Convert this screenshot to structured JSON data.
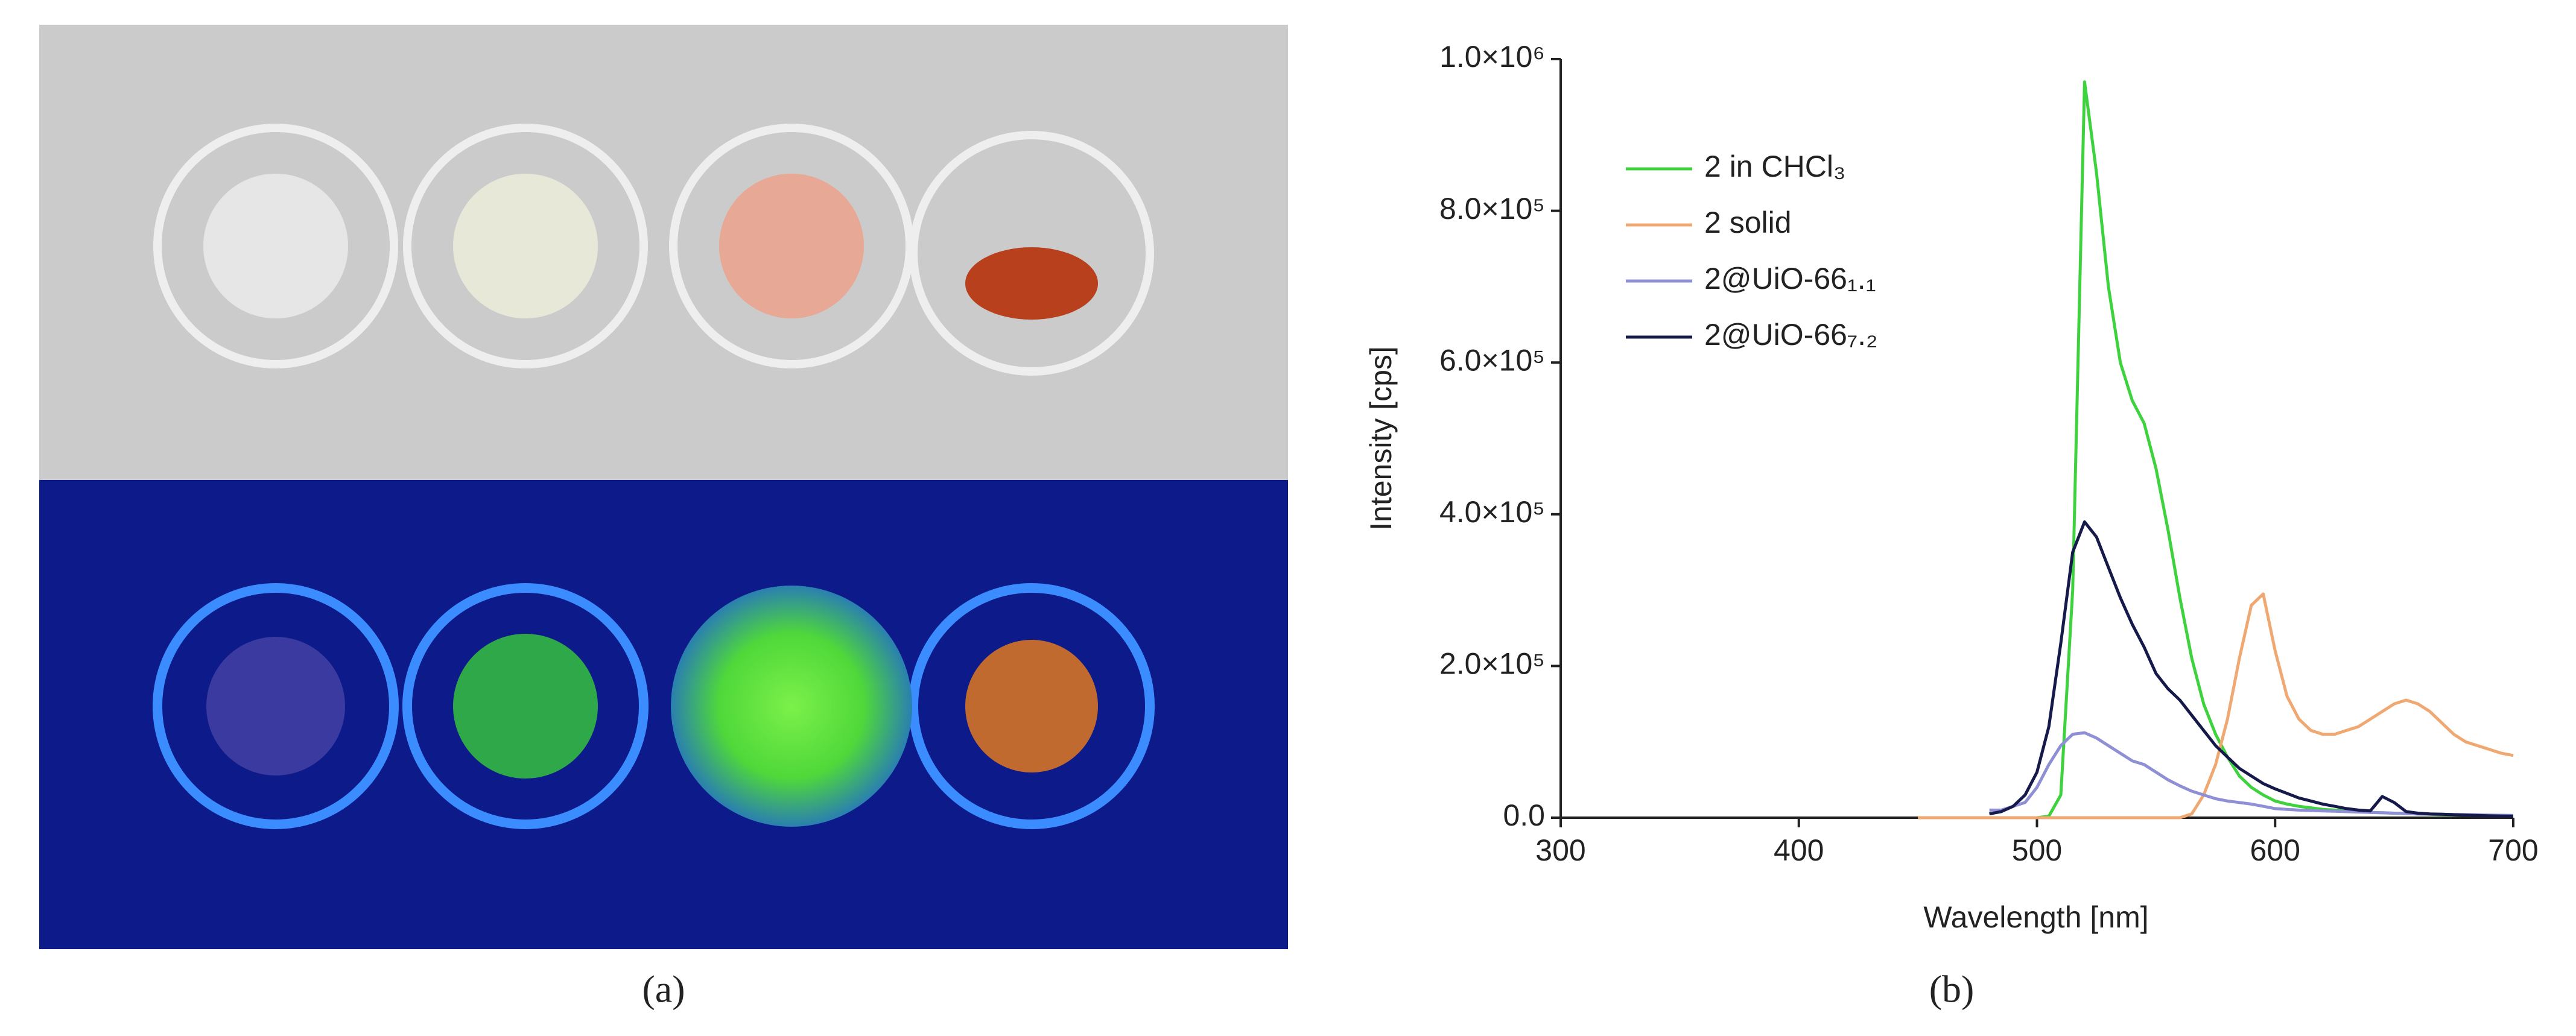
{
  "panel_labels": [
    "(a)",
    "(b)"
  ],
  "chart_data": {
    "type": "line",
    "xlabel": "Wavelength [nm]",
    "ylabel": "Intensity [cps]",
    "xlim": [
      300,
      700
    ],
    "xticks": [
      300,
      400,
      500,
      600,
      700
    ],
    "ylim": [
      0,
      1000000
    ],
    "yticks": [
      {
        "value": 0,
        "label": "0.0"
      },
      {
        "value": 200000,
        "label": "2.0×10⁵"
      },
      {
        "value": 400000,
        "label": "4.0×10⁵"
      },
      {
        "value": 600000,
        "label": "6.0×10⁵"
      },
      {
        "value": 800000,
        "label": "8.0×10⁵"
      },
      {
        "value": 1000000,
        "label": "1.0×10⁶"
      }
    ],
    "x": [
      450,
      455,
      460,
      465,
      470,
      475,
      480,
      485,
      490,
      495,
      500,
      505,
      510,
      515,
      520,
      525,
      530,
      535,
      540,
      545,
      550,
      555,
      560,
      565,
      570,
      575,
      580,
      585,
      590,
      595,
      600,
      605,
      610,
      615,
      620,
      625,
      630,
      635,
      640,
      645,
      650,
      655,
      660,
      665,
      670,
      675,
      680,
      685,
      690,
      695,
      700
    ],
    "series": [
      {
        "name": "2 in CHCl₃",
        "color": "#3ed33e",
        "values": [
          0,
          0,
          0,
          0,
          0,
          0,
          0,
          0,
          0,
          0,
          0,
          2000,
          30000,
          300000,
          970000,
          850000,
          700000,
          600000,
          550000,
          520000,
          460000,
          380000,
          290000,
          210000,
          150000,
          110000,
          80000,
          55000,
          40000,
          30000,
          22000,
          18000,
          15000,
          13000,
          11000,
          10000,
          9000,
          8000,
          7000,
          6500,
          6000,
          5500,
          5000,
          4500,
          4000,
          3800,
          3500,
          3200,
          3000,
          2800,
          2500
        ]
      },
      {
        "name": "2 solid",
        "color": "#f0a872",
        "values": [
          0,
          0,
          0,
          0,
          0,
          0,
          0,
          0,
          0,
          0,
          0,
          0,
          0,
          0,
          0,
          0,
          0,
          0,
          0,
          0,
          0,
          0,
          0,
          5000,
          30000,
          70000,
          130000,
          210000,
          280000,
          295000,
          220000,
          160000,
          130000,
          115000,
          110000,
          110000,
          115000,
          120000,
          130000,
          140000,
          150000,
          155000,
          150000,
          140000,
          125000,
          110000,
          100000,
          95000,
          90000,
          85000,
          82000
        ]
      },
      {
        "name": "2@UiO-66₁.₁",
        "color": "#8f8fd6",
        "values": [
          null,
          null,
          null,
          null,
          null,
          null,
          10000,
          10000,
          15000,
          20000,
          40000,
          70000,
          95000,
          110000,
          112000,
          105000,
          95000,
          85000,
          75000,
          70000,
          60000,
          50000,
          42000,
          35000,
          30000,
          25000,
          22000,
          20000,
          18000,
          15000,
          12000,
          11000,
          10000,
          9500,
          9000,
          8500,
          8000,
          7500,
          7000,
          6500,
          6000,
          5500,
          5000,
          4800,
          4500,
          4200,
          4000,
          3800,
          3500,
          3200,
          3000
        ]
      },
      {
        "name": "2@UiO-66₇.₂",
        "color": "#161a4a",
        "values": [
          null,
          null,
          null,
          null,
          null,
          null,
          5000,
          8000,
          15000,
          30000,
          60000,
          120000,
          230000,
          350000,
          390000,
          370000,
          330000,
          290000,
          255000,
          225000,
          190000,
          170000,
          155000,
          135000,
          115000,
          95000,
          80000,
          65000,
          55000,
          45000,
          38000,
          32000,
          26000,
          22000,
          18000,
          15000,
          12000,
          10000,
          9000,
          28000,
          20000,
          8000,
          6000,
          5000,
          4500,
          4000,
          3500,
          3000,
          2500,
          2200,
          2000
        ]
      }
    ]
  }
}
